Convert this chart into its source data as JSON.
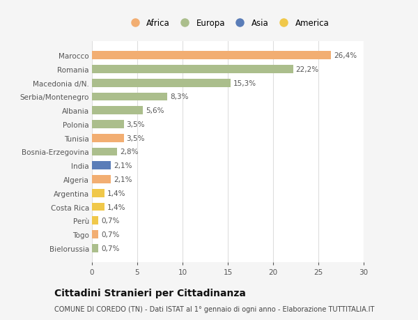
{
  "countries": [
    "Marocco",
    "Romania",
    "Macedonia d/N.",
    "Serbia/Montenegro",
    "Albania",
    "Polonia",
    "Tunisia",
    "Bosnia-Erzegovina",
    "India",
    "Algeria",
    "Argentina",
    "Costa Rica",
    "Perù",
    "Togo",
    "Bielorussia"
  ],
  "values": [
    26.4,
    22.2,
    15.3,
    8.3,
    5.6,
    3.5,
    3.5,
    2.8,
    2.1,
    2.1,
    1.4,
    1.4,
    0.7,
    0.7,
    0.7
  ],
  "labels": [
    "26,4%",
    "22,2%",
    "15,3%",
    "8,3%",
    "5,6%",
    "3,5%",
    "3,5%",
    "2,8%",
    "2,1%",
    "2,1%",
    "1,4%",
    "1,4%",
    "0,7%",
    "0,7%",
    "0,7%"
  ],
  "continent": [
    "Africa",
    "Europa",
    "Europa",
    "Europa",
    "Europa",
    "Europa",
    "Africa",
    "Europa",
    "Asia",
    "Africa",
    "America",
    "America",
    "America",
    "Africa",
    "Europa"
  ],
  "colors": {
    "Africa": "#F2AE72",
    "Europa": "#ABBE8C",
    "Asia": "#5A7DB8",
    "America": "#F0C84A"
  },
  "legend_order": [
    "Africa",
    "Europa",
    "Asia",
    "America"
  ],
  "legend_colors": [
    "#F2AE72",
    "#ABBE8C",
    "#5A7DB8",
    "#F0C84A"
  ],
  "title": "Cittadini Stranieri per Cittadinanza",
  "subtitle": "COMUNE DI COREDO (TN) - Dati ISTAT al 1° gennaio di ogni anno - Elaborazione TUTTITALIA.IT",
  "xlim": [
    0,
    30
  ],
  "xticks": [
    0,
    5,
    10,
    15,
    20,
    25,
    30
  ],
  "bg_color": "#f5f5f5",
  "plot_bg_color": "#ffffff",
  "grid_color": "#dddddd",
  "label_fontsize": 7.5,
  "tick_fontsize": 7.5,
  "title_fontsize": 10,
  "subtitle_fontsize": 7
}
